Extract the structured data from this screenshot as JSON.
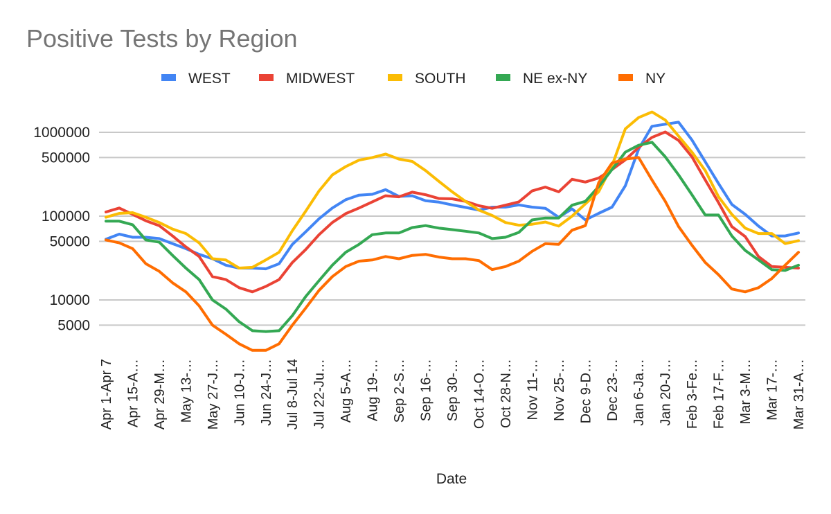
{
  "chart_data": {
    "type": "line",
    "title": "Positive Tests by Region",
    "xlabel": "Date",
    "ylabel": "",
    "yscale": "log",
    "ylim": [
      2500,
      2000000
    ],
    "yticks": [
      5000,
      10000,
      50000,
      100000,
      500000,
      1000000
    ],
    "ytick_labels": [
      "5000",
      "10000",
      "50000",
      "100000",
      "500000",
      "1000000"
    ],
    "grid": true,
    "legend_position": "top",
    "x_tick_labels": [
      "Apr 1-Apr 7",
      "Apr 15-A…",
      "Apr 29-M…",
      "May 13-…",
      "May 27-J…",
      "Jun 10-J…",
      "Jun 24-J…",
      "Jul 8-Jul 14",
      "Jul 22-Ju…",
      "Aug 5-A…",
      "Aug 19-…",
      "Sep 2-S…",
      "Sep 16-…",
      "Sep 30-…",
      "Oct 14-O…",
      "Oct 28-N…",
      "Nov 11-…",
      "Nov 25-…",
      "Dec 9-D…",
      "Dec 23-…",
      "Jan 6-Ja…",
      "Jan 20-J…",
      "Feb 3-Fe…",
      "Feb 17-F…",
      "Mar 3-M…",
      "Mar 17-…",
      "Mar 31-A…"
    ],
    "n_points": 53,
    "series": [
      {
        "name": "WEST",
        "color": "#4285f4",
        "values": [
          53000,
          61000,
          56000,
          56000,
          54000,
          47000,
          41000,
          35000,
          31000,
          26000,
          24000,
          24000,
          23500,
          27000,
          46000,
          65000,
          93000,
          125000,
          157000,
          178000,
          182000,
          207000,
          172000,
          175000,
          153000,
          147000,
          136000,
          127000,
          118000,
          128000,
          128000,
          136000,
          128000,
          124000,
          97000,
          122000,
          90000,
          108000,
          128000,
          230000,
          630000,
          1180000,
          1250000,
          1320000,
          810000,
          445000,
          245000,
          138000,
          105000,
          76000,
          58000,
          58000,
          63000
        ]
      },
      {
        "name": "MIDWEST",
        "color": "#ea4335",
        "values": [
          112000,
          125000,
          105000,
          88000,
          77000,
          58000,
          43000,
          33000,
          19000,
          17500,
          14000,
          12500,
          14500,
          17500,
          28000,
          40000,
          60000,
          84000,
          107000,
          125000,
          148000,
          175000,
          170000,
          193000,
          180000,
          162000,
          161000,
          150000,
          133000,
          124000,
          135000,
          148000,
          200000,
          222000,
          195000,
          275000,
          255000,
          285000,
          360000,
          470000,
          660000,
          870000,
          1010000,
          800000,
          510000,
          270000,
          145000,
          75000,
          57000,
          33000,
          25000,
          24500,
          24000
        ]
      },
      {
        "name": "SOUTH",
        "color": "#fbbc04",
        "values": [
          97000,
          108000,
          110000,
          97000,
          84000,
          70000,
          62000,
          48000,
          31000,
          30000,
          24000,
          24500,
          30000,
          37000,
          67000,
          115000,
          200000,
          310000,
          390000,
          465000,
          500000,
          550000,
          480000,
          450000,
          350000,
          260000,
          195000,
          150000,
          118000,
          102000,
          84000,
          78000,
          80000,
          85000,
          76000,
          100000,
          140000,
          195000,
          400000,
          1100000,
          1500000,
          1750000,
          1400000,
          900000,
          580000,
          350000,
          170000,
          105000,
          72000,
          62000,
          62000,
          47000,
          51000
        ]
      },
      {
        "name": "NE ex-NY",
        "color": "#34a853",
        "values": [
          87000,
          87000,
          79000,
          52000,
          49000,
          34000,
          24000,
          17500,
          10000,
          7800,
          5500,
          4300,
          4200,
          4300,
          6500,
          11000,
          17000,
          26000,
          37000,
          46000,
          60000,
          63000,
          63000,
          73000,
          77000,
          72000,
          69000,
          66000,
          63000,
          54000,
          56000,
          64000,
          90000,
          95000,
          95000,
          135000,
          150000,
          225000,
          360000,
          580000,
          700000,
          760000,
          510000,
          310000,
          180000,
          103000,
          103000,
          58000,
          39000,
          30000,
          23000,
          22500,
          26000
        ]
      },
      {
        "name": "NY",
        "color": "#ff6d01",
        "values": [
          52000,
          48000,
          41000,
          27000,
          22000,
          16000,
          12500,
          8500,
          5000,
          3900,
          3000,
          2500,
          2500,
          3000,
          5000,
          8000,
          13000,
          19000,
          25000,
          29000,
          30000,
          33000,
          31000,
          34000,
          35000,
          32500,
          31000,
          31000,
          29500,
          23000,
          25000,
          29000,
          38000,
          47000,
          46000,
          68000,
          77000,
          250000,
          430000,
          480000,
          500000,
          270000,
          150000,
          75000,
          45000,
          28000,
          20000,
          13500,
          12500,
          14000,
          18000,
          26000,
          37000
        ]
      }
    ]
  }
}
